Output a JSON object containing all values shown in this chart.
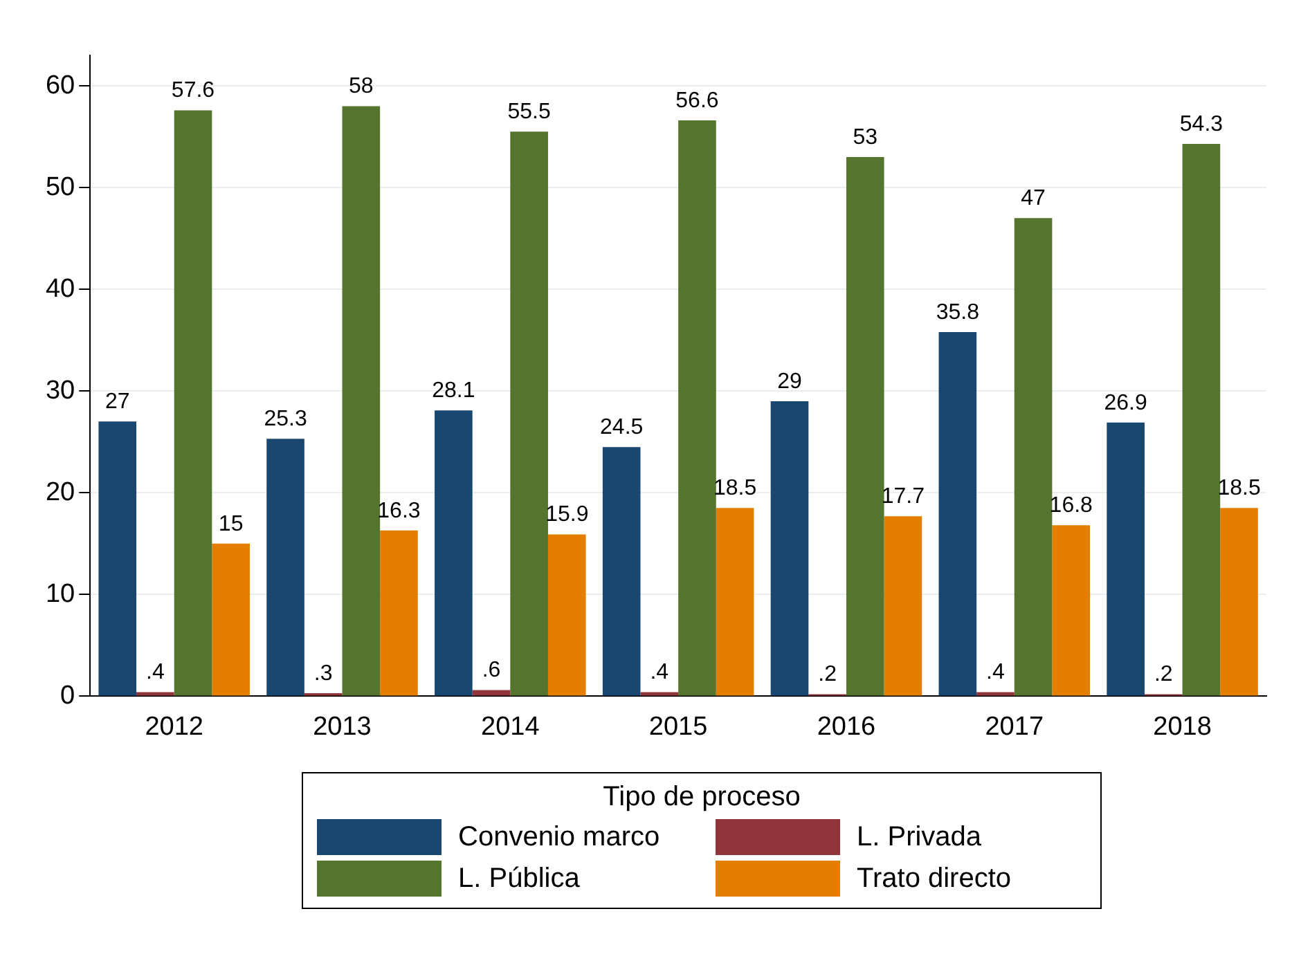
{
  "chart_data": {
    "type": "bar",
    "categories": [
      "2012",
      "2013",
      "2014",
      "2015",
      "2016",
      "2017",
      "2018"
    ],
    "series": [
      {
        "name": "Convenio marco",
        "color": "#1a476f",
        "values": [
          27,
          25.3,
          28.1,
          24.5,
          29,
          35.8,
          26.9
        ],
        "value_labels": [
          "27",
          "25.3",
          "28.1",
          "24.5",
          "29",
          "35.8",
          "26.9"
        ]
      },
      {
        "name": "L. Privada",
        "color": "#90353b",
        "values": [
          0.4,
          0.3,
          0.6,
          0.4,
          0.2,
          0.4,
          0.2
        ],
        "value_labels": [
          ".4",
          ".3",
          ".6",
          ".4",
          ".2",
          ".4",
          ".2"
        ]
      },
      {
        "name": "L. Pública",
        "color": "#55752f",
        "values": [
          57.6,
          58,
          55.5,
          56.6,
          53,
          47,
          54.3
        ],
        "value_labels": [
          "57.6",
          "58",
          "55.5",
          "56.6",
          "53",
          "47",
          "54.3"
        ]
      },
      {
        "name": "Trato directo",
        "color": "#e37e00",
        "values": [
          15,
          16.3,
          15.9,
          18.5,
          17.7,
          16.8,
          18.5
        ],
        "value_labels": [
          "15",
          "16.3",
          "15.9",
          "18.5",
          "17.7",
          "16.8",
          "18.5"
        ]
      }
    ],
    "legend_title": "Tipo de proceso",
    "legend": "bottom",
    "ylim": [
      0,
      63
    ],
    "yticks": [
      0,
      10,
      20,
      30,
      40,
      50,
      60
    ],
    "grid": "y"
  }
}
